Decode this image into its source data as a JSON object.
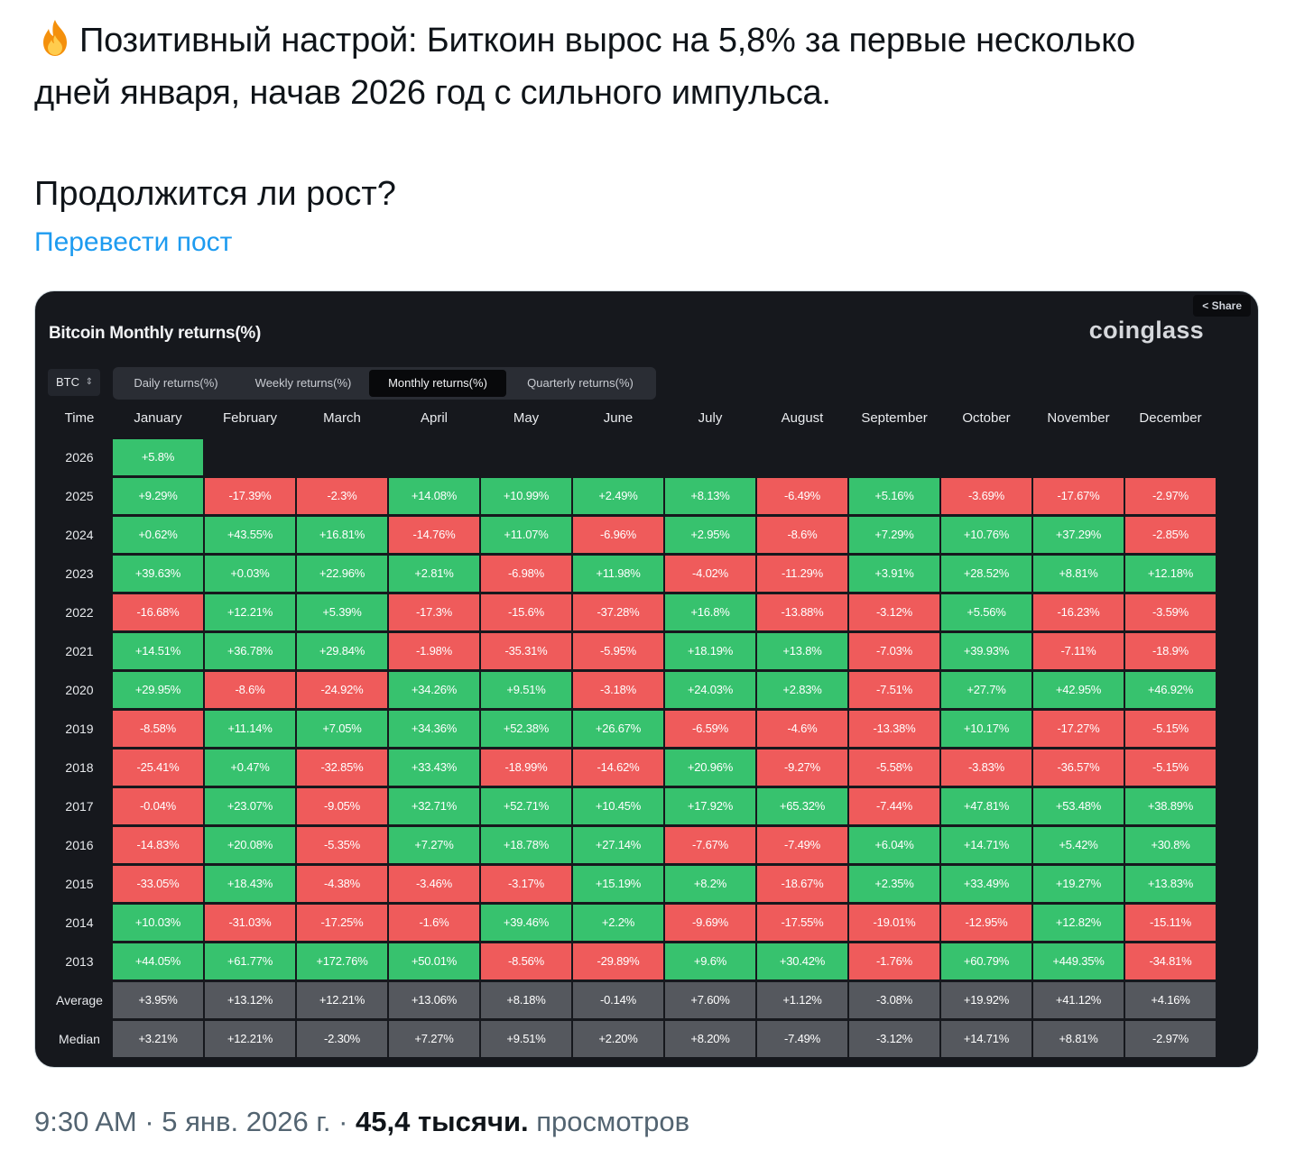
{
  "post": {
    "line1": "Позитивный настрой: Биткоин вырос на 5,8% за первые несколько",
    "line2": "дней января, начав 2026 год с сильного импульса.",
    "question": "Продолжится ли рост?",
    "translate_link": "Перевести пост"
  },
  "chart_card": {
    "share_label": "Share",
    "title": "Bitcoin Monthly returns(%)",
    "brand": "coinglass",
    "asset_select": "BTC",
    "tabs": [
      "Daily returns(%)",
      "Weekly returns(%)",
      "Monthly returns(%)",
      "Quarterly returns(%)"
    ],
    "active_tab": "Monthly returns(%)",
    "colors": {
      "positive": "#37c26e",
      "negative": "#ef5b5b",
      "summary": "#55585e",
      "background": "#16181d"
    }
  },
  "chart_data": {
    "type": "table",
    "title": "Bitcoin Monthly returns(%)",
    "header_time": "Time",
    "columns": [
      "January",
      "February",
      "March",
      "April",
      "May",
      "June",
      "July",
      "August",
      "September",
      "October",
      "November",
      "December"
    ],
    "rows": [
      {
        "label": "2026",
        "values": [
          "+5.8%"
        ]
      },
      {
        "label": "2025",
        "values": [
          "+9.29%",
          "-17.39%",
          "-2.3%",
          "+14.08%",
          "+10.99%",
          "+2.49%",
          "+8.13%",
          "-6.49%",
          "+5.16%",
          "-3.69%",
          "-17.67%",
          "-2.97%"
        ]
      },
      {
        "label": "2024",
        "values": [
          "+0.62%",
          "+43.55%",
          "+16.81%",
          "-14.76%",
          "+11.07%",
          "-6.96%",
          "+2.95%",
          "-8.6%",
          "+7.29%",
          "+10.76%",
          "+37.29%",
          "-2.85%"
        ]
      },
      {
        "label": "2023",
        "values": [
          "+39.63%",
          "+0.03%",
          "+22.96%",
          "+2.81%",
          "-6.98%",
          "+11.98%",
          "-4.02%",
          "-11.29%",
          "+3.91%",
          "+28.52%",
          "+8.81%",
          "+12.18%"
        ]
      },
      {
        "label": "2022",
        "values": [
          "-16.68%",
          "+12.21%",
          "+5.39%",
          "-17.3%",
          "-15.6%",
          "-37.28%",
          "+16.8%",
          "-13.88%",
          "-3.12%",
          "+5.56%",
          "-16.23%",
          "-3.59%"
        ]
      },
      {
        "label": "2021",
        "values": [
          "+14.51%",
          "+36.78%",
          "+29.84%",
          "-1.98%",
          "-35.31%",
          "-5.95%",
          "+18.19%",
          "+13.8%",
          "-7.03%",
          "+39.93%",
          "-7.11%",
          "-18.9%"
        ]
      },
      {
        "label": "2020",
        "values": [
          "+29.95%",
          "-8.6%",
          "-24.92%",
          "+34.26%",
          "+9.51%",
          "-3.18%",
          "+24.03%",
          "+2.83%",
          "-7.51%",
          "+27.7%",
          "+42.95%",
          "+46.92%"
        ]
      },
      {
        "label": "2019",
        "values": [
          "-8.58%",
          "+11.14%",
          "+7.05%",
          "+34.36%",
          "+52.38%",
          "+26.67%",
          "-6.59%",
          "-4.6%",
          "-13.38%",
          "+10.17%",
          "-17.27%",
          "-5.15%"
        ]
      },
      {
        "label": "2018",
        "values": [
          "-25.41%",
          "+0.47%",
          "-32.85%",
          "+33.43%",
          "-18.99%",
          "-14.62%",
          "+20.96%",
          "-9.27%",
          "-5.58%",
          "-3.83%",
          "-36.57%",
          "-5.15%"
        ]
      },
      {
        "label": "2017",
        "values": [
          "-0.04%",
          "+23.07%",
          "-9.05%",
          "+32.71%",
          "+52.71%",
          "+10.45%",
          "+17.92%",
          "+65.32%",
          "-7.44%",
          "+47.81%",
          "+53.48%",
          "+38.89%"
        ]
      },
      {
        "label": "2016",
        "values": [
          "-14.83%",
          "+20.08%",
          "-5.35%",
          "+7.27%",
          "+18.78%",
          "+27.14%",
          "-7.67%",
          "-7.49%",
          "+6.04%",
          "+14.71%",
          "+5.42%",
          "+30.8%"
        ]
      },
      {
        "label": "2015",
        "values": [
          "-33.05%",
          "+18.43%",
          "-4.38%",
          "-3.46%",
          "-3.17%",
          "+15.19%",
          "+8.2%",
          "-18.67%",
          "+2.35%",
          "+33.49%",
          "+19.27%",
          "+13.83%"
        ]
      },
      {
        "label": "2014",
        "values": [
          "+10.03%",
          "-31.03%",
          "-17.25%",
          "-1.6%",
          "+39.46%",
          "+2.2%",
          "-9.69%",
          "-17.55%",
          "-19.01%",
          "-12.95%",
          "+12.82%",
          "-15.11%"
        ]
      },
      {
        "label": "2013",
        "values": [
          "+44.05%",
          "+61.77%",
          "+172.76%",
          "+50.01%",
          "-8.56%",
          "-29.89%",
          "+9.6%",
          "+30.42%",
          "-1.76%",
          "+60.79%",
          "+449.35%",
          "-34.81%"
        ]
      }
    ],
    "summary_rows": [
      {
        "label": "Average",
        "values": [
          "+3.95%",
          "+13.12%",
          "+12.21%",
          "+13.06%",
          "+8.18%",
          "-0.14%",
          "+7.60%",
          "+1.12%",
          "-3.08%",
          "+19.92%",
          "+41.12%",
          "+4.16%"
        ]
      },
      {
        "label": "Median",
        "values": [
          "+3.21%",
          "+12.21%",
          "-2.30%",
          "+7.27%",
          "+9.51%",
          "+2.20%",
          "+8.20%",
          "-7.49%",
          "-3.12%",
          "+14.71%",
          "+8.81%",
          "-2.97%"
        ]
      }
    ]
  },
  "footer": {
    "time": "9:30 AM · 5 янв. 2026 г. ·",
    "views_count": "45,4 тысячи.",
    "views_label": "просмотров"
  }
}
